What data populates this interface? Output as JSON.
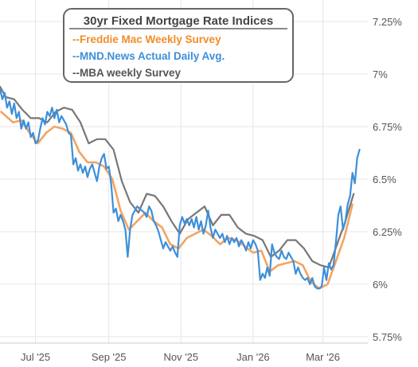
{
  "chart_data": {
    "type": "line",
    "title": "30yr Fixed Mortgage Rate Indices",
    "ylim": [
      5.75,
      7.25
    ],
    "y_ticks": [
      7.25,
      7.0,
      6.75,
      6.5,
      6.25,
      6.0,
      5.75
    ],
    "y_tick_labels": [
      "7.25%",
      "7%",
      "6.75%",
      "6.5%",
      "6.25%",
      "6%",
      "5.75%"
    ],
    "x_range": [
      "2025-06-01",
      "2026-04-08"
    ],
    "x_ticks": [
      "2025-07-01",
      "2025-09-01",
      "2025-11-01",
      "2026-01-01",
      "2026-03-01"
    ],
    "x_tick_labels": [
      "Jul '25",
      "Sep '25",
      "Nov '25",
      "Jan '26",
      "Mar '26"
    ],
    "grid": true,
    "legend_position": "top-center",
    "series": [
      {
        "name": "--Freddie Mac Weekly Survey",
        "color": "#f4a460",
        "legend_color": "#f28c28",
        "points": [
          [
            "2025-06-02",
            6.82
          ],
          [
            "2025-06-12",
            6.77
          ],
          [
            "2025-06-19",
            6.78
          ],
          [
            "2025-06-26",
            6.72
          ],
          [
            "2025-07-03",
            6.67
          ],
          [
            "2025-07-10",
            6.72
          ],
          [
            "2025-07-17",
            6.75
          ],
          [
            "2025-07-24",
            6.74
          ],
          [
            "2025-07-31",
            6.72
          ],
          [
            "2025-08-07",
            6.63
          ],
          [
            "2025-08-14",
            6.58
          ],
          [
            "2025-08-21",
            6.58
          ],
          [
            "2025-08-28",
            6.56
          ],
          [
            "2025-09-04",
            6.5
          ],
          [
            "2025-09-11",
            6.35
          ],
          [
            "2025-09-18",
            6.26
          ],
          [
            "2025-09-25",
            6.3
          ],
          [
            "2025-10-02",
            6.34
          ],
          [
            "2025-10-09",
            6.3
          ],
          [
            "2025-10-16",
            6.27
          ],
          [
            "2025-10-23",
            6.19
          ],
          [
            "2025-10-30",
            6.17
          ],
          [
            "2025-11-06",
            6.22
          ],
          [
            "2025-11-13",
            6.24
          ],
          [
            "2025-11-20",
            6.26
          ],
          [
            "2025-11-27",
            6.23
          ],
          [
            "2025-12-04",
            6.19
          ],
          [
            "2025-12-11",
            6.22
          ],
          [
            "2025-12-18",
            6.21
          ],
          [
            "2025-12-25",
            6.18
          ],
          [
            "2026-01-01",
            6.15
          ],
          [
            "2026-01-08",
            6.16
          ],
          [
            "2026-01-15",
            6.06
          ],
          [
            "2026-01-22",
            6.09
          ],
          [
            "2026-01-29",
            6.1
          ],
          [
            "2026-02-05",
            6.11
          ],
          [
            "2026-02-12",
            6.09
          ],
          [
            "2026-02-19",
            6.01
          ],
          [
            "2026-02-26",
            5.98
          ],
          [
            "2026-03-05",
            6.0
          ],
          [
            "2026-03-12",
            6.11
          ],
          [
            "2026-03-19",
            6.22
          ],
          [
            "2026-03-26",
            6.38
          ]
        ]
      },
      {
        "name": "--MND.News Actual Daily Avg.",
        "color": "#3d8fd9",
        "legend_color": "#3d8fd9",
        "points": [
          [
            "2025-06-01",
            6.93
          ],
          [
            "2025-06-03",
            6.88
          ],
          [
            "2025-06-05",
            6.91
          ],
          [
            "2025-06-07",
            6.84
          ],
          [
            "2025-06-09",
            6.87
          ],
          [
            "2025-06-11",
            6.81
          ],
          [
            "2025-06-13",
            6.86
          ],
          [
            "2025-06-15",
            6.79
          ],
          [
            "2025-06-17",
            6.82
          ],
          [
            "2025-06-19",
            6.74
          ],
          [
            "2025-06-21",
            6.78
          ],
          [
            "2025-06-23",
            6.74
          ],
          [
            "2025-06-25",
            6.77
          ],
          [
            "2025-06-27",
            6.7
          ],
          [
            "2025-06-29",
            6.72
          ],
          [
            "2025-07-01",
            6.67
          ],
          [
            "2025-07-03",
            6.68
          ],
          [
            "2025-07-05",
            6.74
          ],
          [
            "2025-07-07",
            6.79
          ],
          [
            "2025-07-09",
            6.76
          ],
          [
            "2025-07-11",
            6.82
          ],
          [
            "2025-07-13",
            6.8
          ],
          [
            "2025-07-15",
            6.84
          ],
          [
            "2025-07-17",
            6.79
          ],
          [
            "2025-07-19",
            6.83
          ],
          [
            "2025-07-21",
            6.77
          ],
          [
            "2025-07-23",
            6.8
          ],
          [
            "2025-07-25",
            6.78
          ],
          [
            "2025-07-27",
            6.76
          ],
          [
            "2025-07-29",
            6.72
          ],
          [
            "2025-07-31",
            6.71
          ],
          [
            "2025-08-02",
            6.57
          ],
          [
            "2025-08-04",
            6.6
          ],
          [
            "2025-08-06",
            6.54
          ],
          [
            "2025-08-08",
            6.57
          ],
          [
            "2025-08-10",
            6.53
          ],
          [
            "2025-08-12",
            6.56
          ],
          [
            "2025-08-14",
            6.51
          ],
          [
            "2025-08-16",
            6.55
          ],
          [
            "2025-08-18",
            6.57
          ],
          [
            "2025-08-20",
            6.53
          ],
          [
            "2025-08-22",
            6.49
          ],
          [
            "2025-08-24",
            6.56
          ],
          [
            "2025-08-26",
            6.6
          ],
          [
            "2025-08-28",
            6.62
          ],
          [
            "2025-08-30",
            6.55
          ],
          [
            "2025-09-01",
            6.56
          ],
          [
            "2025-09-03",
            6.48
          ],
          [
            "2025-09-05",
            6.34
          ],
          [
            "2025-09-07",
            6.36
          ],
          [
            "2025-09-09",
            6.3
          ],
          [
            "2025-09-11",
            6.33
          ],
          [
            "2025-09-13",
            6.3
          ],
          [
            "2025-09-15",
            6.26
          ],
          [
            "2025-09-17",
            6.13
          ],
          [
            "2025-09-19",
            6.26
          ],
          [
            "2025-09-21",
            6.33
          ],
          [
            "2025-09-23",
            6.35
          ],
          [
            "2025-09-25",
            6.37
          ],
          [
            "2025-09-27",
            6.36
          ],
          [
            "2025-09-29",
            6.35
          ],
          [
            "2025-10-01",
            6.34
          ],
          [
            "2025-10-03",
            6.32
          ],
          [
            "2025-10-05",
            6.37
          ],
          [
            "2025-10-07",
            6.35
          ],
          [
            "2025-10-09",
            6.3
          ],
          [
            "2025-10-11",
            6.28
          ],
          [
            "2025-10-13",
            6.25
          ],
          [
            "2025-10-15",
            6.21
          ],
          [
            "2025-10-17",
            6.17
          ],
          [
            "2025-10-19",
            6.2
          ],
          [
            "2025-10-21",
            6.18
          ],
          [
            "2025-10-23",
            6.16
          ],
          [
            "2025-10-25",
            6.18
          ],
          [
            "2025-10-27",
            6.15
          ],
          [
            "2025-10-29",
            6.13
          ],
          [
            "2025-10-31",
            6.28
          ],
          [
            "2025-11-02",
            6.32
          ],
          [
            "2025-11-04",
            6.29
          ],
          [
            "2025-11-06",
            6.31
          ],
          [
            "2025-11-08",
            6.28
          ],
          [
            "2025-11-10",
            6.31
          ],
          [
            "2025-11-12",
            6.27
          ],
          [
            "2025-11-14",
            6.32
          ],
          [
            "2025-11-16",
            6.26
          ],
          [
            "2025-11-18",
            6.3
          ],
          [
            "2025-11-20",
            6.24
          ],
          [
            "2025-11-22",
            6.28
          ],
          [
            "2025-11-24",
            6.35
          ],
          [
            "2025-11-26",
            6.27
          ],
          [
            "2025-11-28",
            6.22
          ],
          [
            "2025-11-30",
            6.26
          ],
          [
            "2025-12-02",
            6.24
          ],
          [
            "2025-12-04",
            6.22
          ],
          [
            "2025-12-06",
            6.24
          ],
          [
            "2025-12-08",
            6.2
          ],
          [
            "2025-12-10",
            6.23
          ],
          [
            "2025-12-12",
            6.19
          ],
          [
            "2025-12-14",
            6.22
          ],
          [
            "2025-12-16",
            6.2
          ],
          [
            "2025-12-18",
            6.22
          ],
          [
            "2025-12-20",
            6.18
          ],
          [
            "2025-12-22",
            6.21
          ],
          [
            "2025-12-24",
            6.19
          ],
          [
            "2025-12-26",
            6.16
          ],
          [
            "2025-12-28",
            6.2
          ],
          [
            "2025-12-30",
            6.17
          ],
          [
            "2026-01-01",
            6.21
          ],
          [
            "2026-01-03",
            6.19
          ],
          [
            "2026-01-05",
            6.16
          ],
          [
            "2026-01-07",
            6.02
          ],
          [
            "2026-01-09",
            6.05
          ],
          [
            "2026-01-11",
            6.03
          ],
          [
            "2026-01-13",
            6.08
          ],
          [
            "2026-01-15",
            6.04
          ],
          [
            "2026-01-17",
            6.19
          ],
          [
            "2026-01-19",
            6.15
          ],
          [
            "2026-01-21",
            6.13
          ],
          [
            "2026-01-23",
            6.12
          ],
          [
            "2026-01-25",
            6.16
          ],
          [
            "2026-01-27",
            6.13
          ],
          [
            "2026-01-29",
            6.12
          ],
          [
            "2026-01-31",
            6.15
          ],
          [
            "2026-02-02",
            6.13
          ],
          [
            "2026-02-04",
            6.11
          ],
          [
            "2026-02-06",
            6.05
          ],
          [
            "2026-02-08",
            6.08
          ],
          [
            "2026-02-10",
            6.05
          ],
          [
            "2026-02-12",
            6.03
          ],
          [
            "2026-02-14",
            6.02
          ],
          [
            "2026-02-16",
            6.03
          ],
          [
            "2026-02-18",
            6.0
          ],
          [
            "2026-02-20",
            6.03
          ],
          [
            "2026-02-22",
            5.99
          ],
          [
            "2026-02-24",
            5.98
          ],
          [
            "2026-02-26",
            5.98
          ],
          [
            "2026-02-28",
            5.99
          ],
          [
            "2026-03-02",
            6.08
          ],
          [
            "2026-03-04",
            6.02
          ],
          [
            "2026-03-06",
            6.1
          ],
          [
            "2026-03-08",
            6.07
          ],
          [
            "2026-03-10",
            6.09
          ],
          [
            "2026-03-12",
            6.2
          ],
          [
            "2026-03-14",
            6.33
          ],
          [
            "2026-03-16",
            6.37
          ],
          [
            "2026-03-18",
            6.26
          ],
          [
            "2026-03-20",
            6.3
          ],
          [
            "2026-03-22",
            6.38
          ],
          [
            "2026-03-24",
            6.42
          ],
          [
            "2026-03-26",
            6.53
          ],
          [
            "2026-03-28",
            6.48
          ],
          [
            "2026-03-30",
            6.6
          ],
          [
            "2026-04-01",
            6.64
          ]
        ]
      },
      {
        "name": "--MBA weekly Survey",
        "color": "#777777",
        "legend_color": "#555555",
        "points": [
          [
            "2025-06-01",
            6.94
          ],
          [
            "2025-06-06",
            6.89
          ],
          [
            "2025-06-13",
            6.88
          ],
          [
            "2025-06-20",
            6.83
          ],
          [
            "2025-06-27",
            6.79
          ],
          [
            "2025-07-04",
            6.79
          ],
          [
            "2025-07-11",
            6.77
          ],
          [
            "2025-07-18",
            6.82
          ],
          [
            "2025-07-25",
            6.84
          ],
          [
            "2025-08-01",
            6.83
          ],
          [
            "2025-08-08",
            6.77
          ],
          [
            "2025-08-15",
            6.67
          ],
          [
            "2025-08-22",
            6.69
          ],
          [
            "2025-08-29",
            6.69
          ],
          [
            "2025-09-05",
            6.64
          ],
          [
            "2025-09-12",
            6.49
          ],
          [
            "2025-09-19",
            6.39
          ],
          [
            "2025-09-26",
            6.34
          ],
          [
            "2025-10-03",
            6.43
          ],
          [
            "2025-10-10",
            6.42
          ],
          [
            "2025-10-17",
            6.37
          ],
          [
            "2025-10-24",
            6.3
          ],
          [
            "2025-10-31",
            6.24
          ],
          [
            "2025-11-07",
            6.31
          ],
          [
            "2025-11-14",
            6.34
          ],
          [
            "2025-11-21",
            6.37
          ],
          [
            "2025-11-28",
            6.28
          ],
          [
            "2025-12-05",
            6.33
          ],
          [
            "2025-12-12",
            6.33
          ],
          [
            "2025-12-19",
            6.27
          ],
          [
            "2025-12-26",
            6.24
          ],
          [
            "2026-01-02",
            6.23
          ],
          [
            "2026-01-09",
            6.21
          ],
          [
            "2026-01-16",
            6.13
          ],
          [
            "2026-01-23",
            6.16
          ],
          [
            "2026-01-30",
            6.21
          ],
          [
            "2026-02-06",
            6.21
          ],
          [
            "2026-02-13",
            6.17
          ],
          [
            "2026-02-20",
            6.11
          ],
          [
            "2026-02-27",
            6.09
          ],
          [
            "2026-03-06",
            6.08
          ],
          [
            "2026-03-13",
            6.19
          ],
          [
            "2026-03-20",
            6.3
          ],
          [
            "2026-03-27",
            6.43
          ]
        ]
      }
    ]
  }
}
